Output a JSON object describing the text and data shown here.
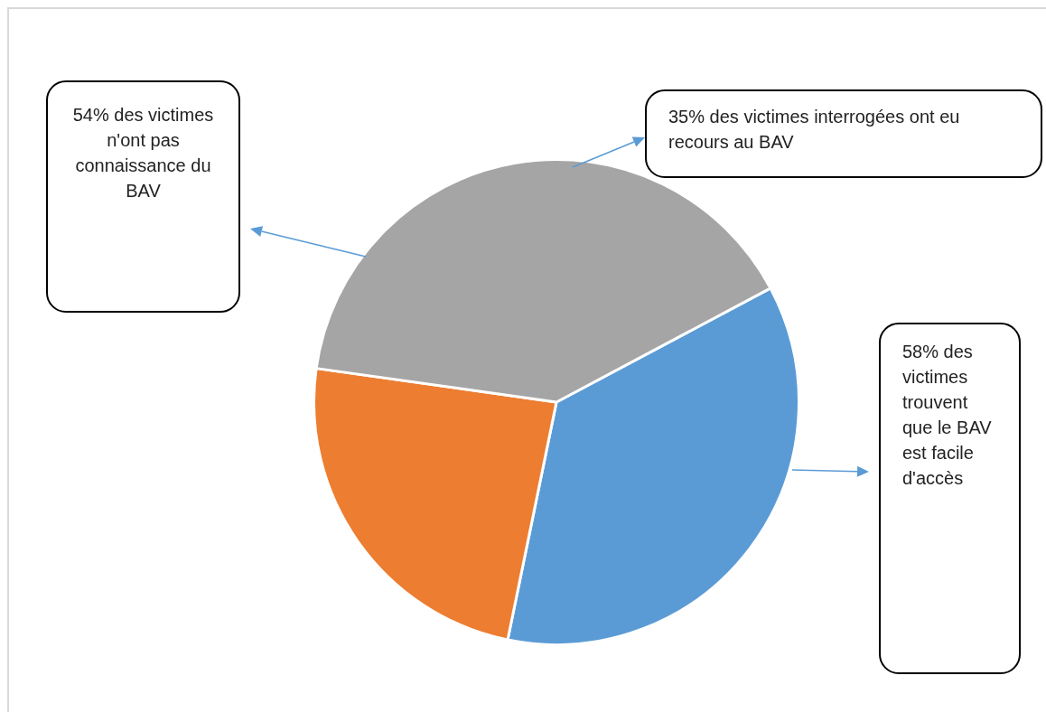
{
  "chart_data": {
    "type": "pie",
    "categories": [
      null,
      null,
      null
    ],
    "values": [
      36,
      24,
      40
    ],
    "colors": [
      "#5b9bd5",
      "#ed7d31",
      "#a5a5a5"
    ],
    "annotations": [
      "54% des victimes n'ont pas connaissance du BAV",
      "35% des victimes interrogées ont eu recours au BAV",
      "58% des victimes trouvent que le BAV est facile d'accès"
    ],
    "legend": false
  }
}
